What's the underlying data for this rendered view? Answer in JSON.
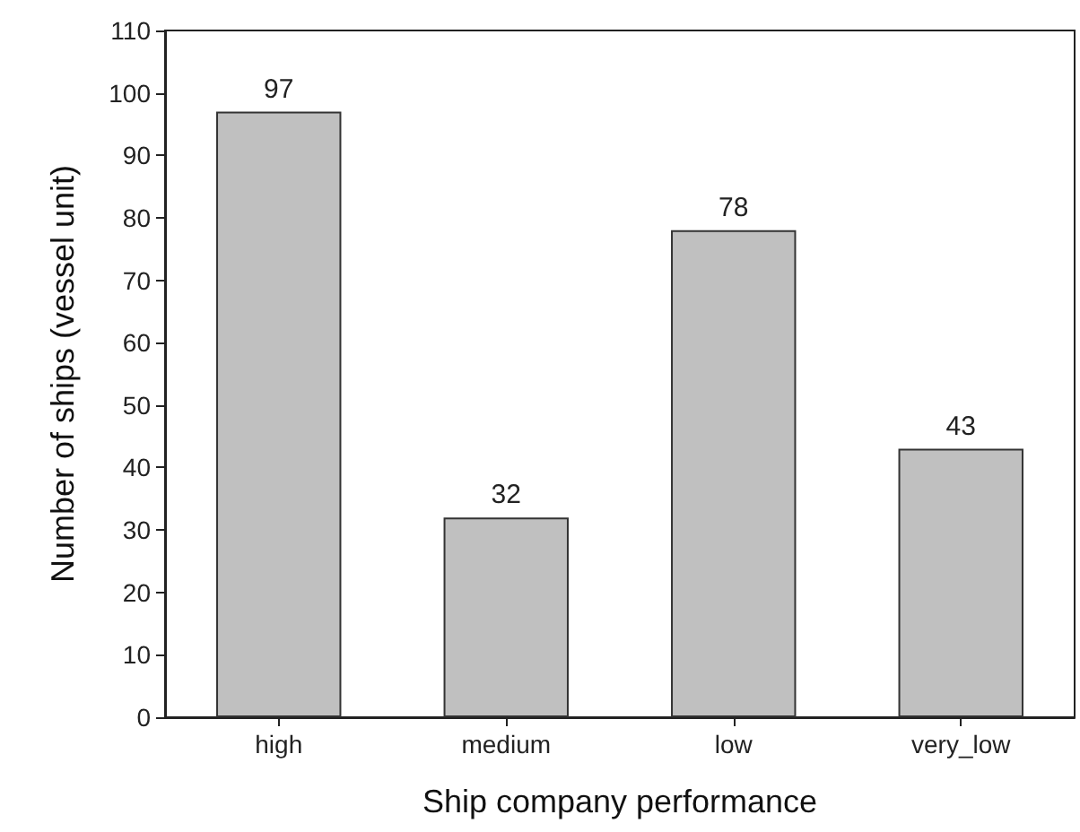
{
  "chart_data": {
    "type": "bar",
    "xlabel": "Ship company performance",
    "ylabel": "Number of ships (vessel unit)",
    "categories": [
      "high",
      "medium",
      "low",
      "very_low"
    ],
    "values": [
      97,
      32,
      78,
      43
    ],
    "color": "#c0c0c0",
    "ylim": [
      0,
      110
    ],
    "yticks": [
      0,
      10,
      20,
      30,
      40,
      50,
      60,
      70,
      80,
      90,
      100,
      110
    ],
    "data_labels": true,
    "grid": false
  }
}
